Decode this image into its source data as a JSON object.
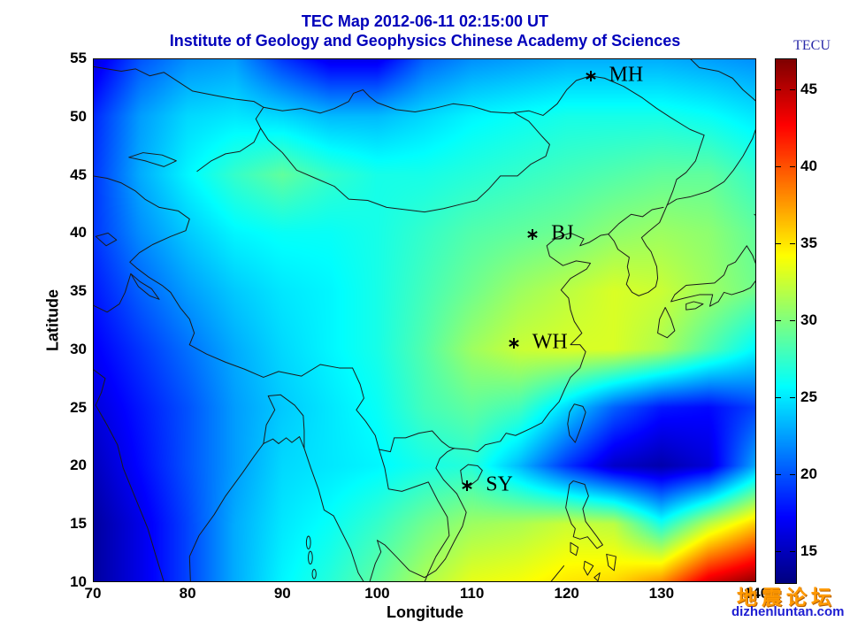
{
  "title": "TEC Map 2012-06-11 02:15:00 UT",
  "subtitle": "Institute of Geology and Geophysics Chinese Academy of Sciences",
  "title_color": "#0000bb",
  "axes": {
    "xlabel": "Longitude",
    "ylabel": "Latitude",
    "x_range": [
      70,
      140
    ],
    "y_range": [
      10,
      55
    ],
    "x_ticks": [
      70,
      80,
      90,
      100,
      110,
      120,
      130,
      140
    ],
    "y_ticks": [
      10,
      15,
      20,
      25,
      30,
      35,
      40,
      45,
      50,
      55
    ]
  },
  "colorbar": {
    "label": "TECU",
    "ticks": [
      15,
      20,
      25,
      30,
      35,
      40,
      45
    ],
    "range": [
      13,
      47
    ],
    "colormap": "jet"
  },
  "stations": [
    {
      "label": "MH",
      "lon": 122.5,
      "lat": 53.5
    },
    {
      "label": "BJ",
      "lon": 116.4,
      "lat": 39.9
    },
    {
      "label": "WH",
      "lon": 114.4,
      "lat": 30.5
    },
    {
      "label": "SY",
      "lon": 109.5,
      "lat": 18.3
    }
  ],
  "watermark": {
    "line1": "地震论坛",
    "line2": "dizhenluntan.com",
    "color1": "#ff9900",
    "color2": "#1e1ed2"
  },
  "chart_data": {
    "type": "heatmap",
    "title": "TEC Map 2012-06-11 02:15:00 UT",
    "xlabel": "Longitude",
    "ylabel": "Latitude",
    "value_unit": "TECU",
    "colormap": "jet",
    "value_range": [
      13,
      47
    ],
    "legend_position": "right-colorbar",
    "x_lon": [
      70,
      75,
      80,
      85,
      90,
      95,
      100,
      105,
      110,
      115,
      120,
      125,
      130,
      135,
      140
    ],
    "y_lat": [
      55,
      50,
      45,
      40,
      35,
      30,
      25,
      20,
      15,
      10
    ],
    "values": [
      [
        16,
        20,
        22,
        22.5,
        19,
        16.5,
        16.5,
        20.5,
        22,
        22.5,
        23,
        23,
        23,
        22.5,
        22
      ],
      [
        18.5,
        22.5,
        24.5,
        25,
        24.5,
        23.5,
        23.5,
        24.5,
        25.5,
        26,
        26.5,
        26.5,
        26.5,
        26,
        25
      ],
      [
        19,
        23,
        25.5,
        27.5,
        29,
        27.5,
        26.5,
        26.5,
        27,
        27.5,
        28,
        28.5,
        29,
        29,
        27.5
      ],
      [
        19,
        22,
        24,
        25.5,
        26,
        26,
        26.5,
        27.5,
        28.5,
        29,
        29.5,
        30.5,
        31,
        30.5,
        29
      ],
      [
        18,
        20.5,
        22.5,
        24,
        25,
        25.5,
        26.5,
        28,
        29.5,
        31,
        32,
        33,
        32.5,
        31,
        29.5
      ],
      [
        17,
        19,
        21,
        23,
        24.5,
        25.5,
        26.5,
        28.5,
        31,
        32.5,
        33,
        33,
        31.5,
        28.5,
        25.5
      ],
      [
        16,
        18,
        20,
        22.5,
        24,
        25,
        26,
        28,
        29,
        28,
        24.5,
        20.5,
        18,
        17.5,
        19.5
      ],
      [
        15,
        17.5,
        20,
        22.5,
        24.5,
        25,
        25.5,
        26.5,
        27,
        23.5,
        19,
        15.5,
        14.5,
        16,
        23
      ],
      [
        14,
        16.5,
        19.5,
        23,
        25,
        26,
        27.5,
        29.5,
        31,
        31.5,
        32.5,
        32,
        26.5,
        32,
        36
      ],
      [
        14,
        16.5,
        19.5,
        23,
        25.5,
        27,
        29,
        31.5,
        33.5,
        34,
        35,
        35.5,
        38,
        44,
        46.5
      ]
    ]
  }
}
